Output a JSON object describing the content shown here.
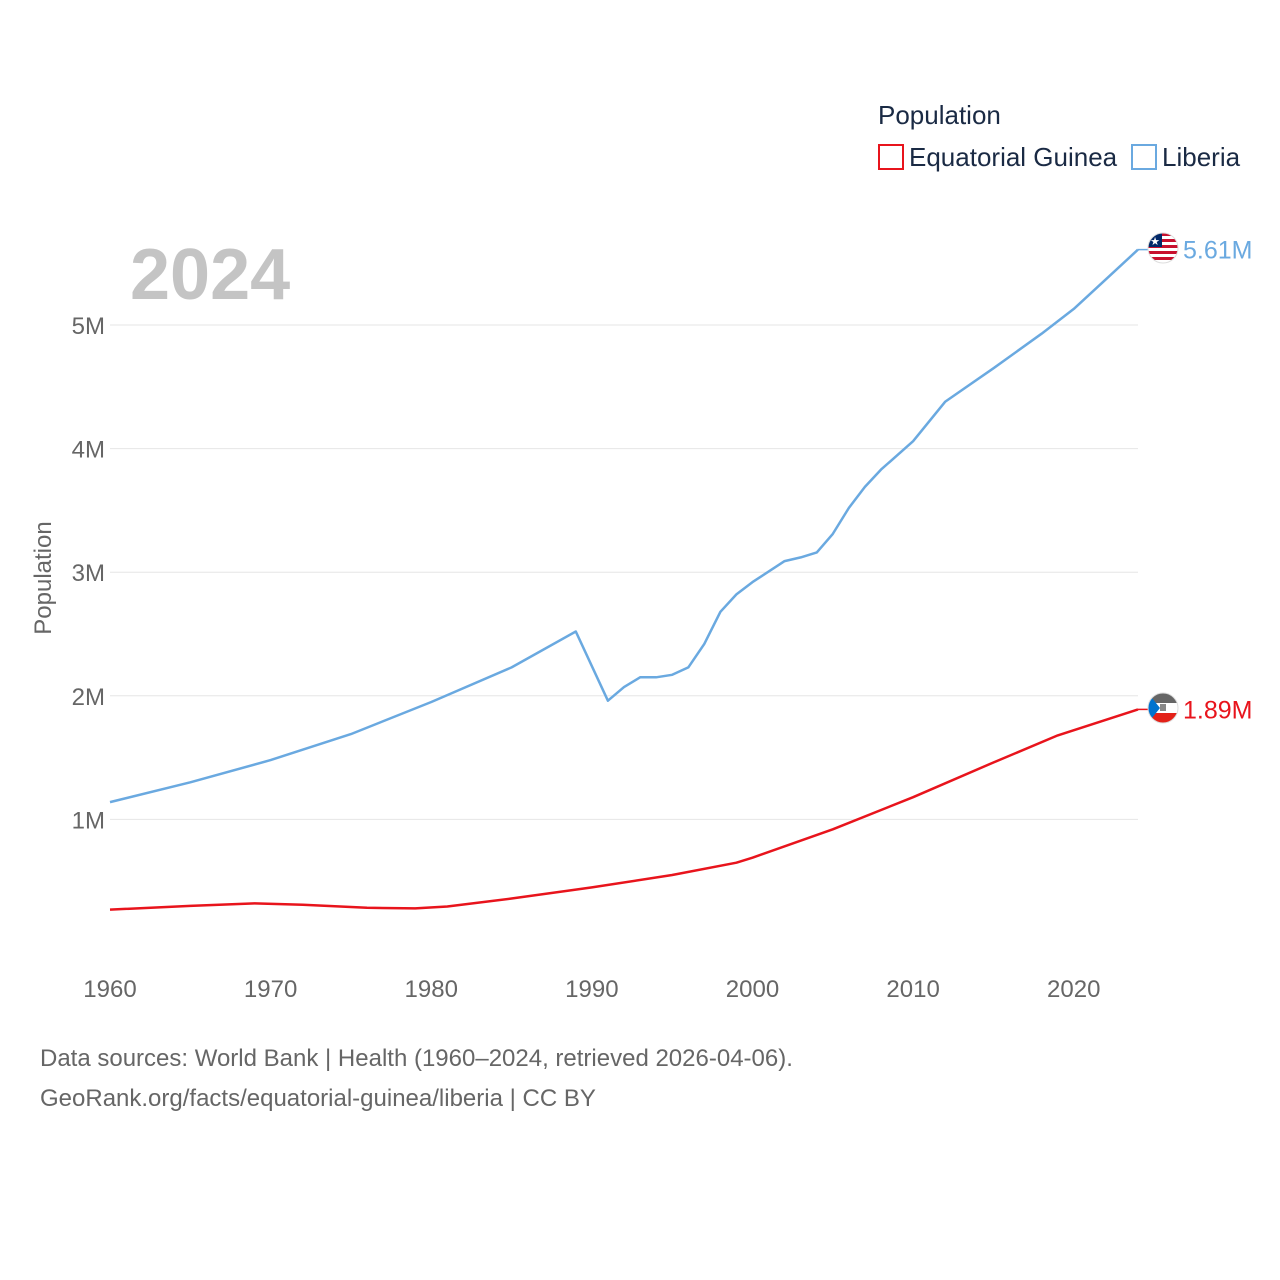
{
  "chart_data": {
    "type": "line",
    "title": "Population",
    "year_display": "2024",
    "xlabel": "",
    "ylabel": "Population",
    "xlim": [
      1960,
      2024
    ],
    "ylim": [
      0,
      5800000
    ],
    "x_ticks": [
      1960,
      1970,
      1980,
      1990,
      2000,
      2010,
      2020
    ],
    "x_tick_labels": [
      "1960",
      "1970",
      "1980",
      "1990",
      "2000",
      "2010",
      "2020"
    ],
    "y_ticks": [
      1000000,
      2000000,
      3000000,
      4000000,
      5000000
    ],
    "y_tick_labels": [
      "1M",
      "2M",
      "3M",
      "4M",
      "5M"
    ],
    "legend_position": "top-right",
    "series": [
      {
        "name": "Equatorial Guinea",
        "color": "#e8141c",
        "end_label": "1.89M",
        "flag": "equatorial-guinea-flag-icon",
        "points": [
          [
            1960,
            270000
          ],
          [
            1965,
            300000
          ],
          [
            1969,
            320000
          ],
          [
            1972,
            310000
          ],
          [
            1976,
            285000
          ],
          [
            1979,
            280000
          ],
          [
            1981,
            295000
          ],
          [
            1985,
            360000
          ],
          [
            1990,
            450000
          ],
          [
            1995,
            550000
          ],
          [
            1999,
            650000
          ],
          [
            2000,
            690000
          ],
          [
            2005,
            920000
          ],
          [
            2010,
            1180000
          ],
          [
            2015,
            1460000
          ],
          [
            2019,
            1680000
          ],
          [
            2024,
            1890000
          ]
        ]
      },
      {
        "name": "Liberia",
        "color": "#6aa9e0",
        "end_label": "5.61M",
        "flag": "liberia-flag-icon",
        "points": [
          [
            1960,
            1140000
          ],
          [
            1965,
            1300000
          ],
          [
            1970,
            1480000
          ],
          [
            1975,
            1690000
          ],
          [
            1980,
            1950000
          ],
          [
            1985,
            2230000
          ],
          [
            1989,
            2520000
          ],
          [
            1991,
            1960000
          ],
          [
            1992,
            2070000
          ],
          [
            1993,
            2150000
          ],
          [
            1994,
            2150000
          ],
          [
            1995,
            2170000
          ],
          [
            1996,
            2230000
          ],
          [
            1997,
            2420000
          ],
          [
            1998,
            2680000
          ],
          [
            1999,
            2820000
          ],
          [
            2000,
            2920000
          ],
          [
            2002,
            3090000
          ],
          [
            2003,
            3120000
          ],
          [
            2004,
            3160000
          ],
          [
            2005,
            3310000
          ],
          [
            2006,
            3520000
          ],
          [
            2007,
            3690000
          ],
          [
            2008,
            3830000
          ],
          [
            2010,
            4060000
          ],
          [
            2012,
            4380000
          ],
          [
            2015,
            4650000
          ],
          [
            2018,
            4930000
          ],
          [
            2020,
            5130000
          ],
          [
            2022,
            5370000
          ],
          [
            2024,
            5610000
          ]
        ]
      }
    ]
  },
  "footer": {
    "source_line": "Data sources: World Bank | Health (1960–2024, retrieved 2026-04-06).",
    "attribution_line": "GeoRank.org/facts/equatorial-guinea/liberia | CC BY"
  }
}
